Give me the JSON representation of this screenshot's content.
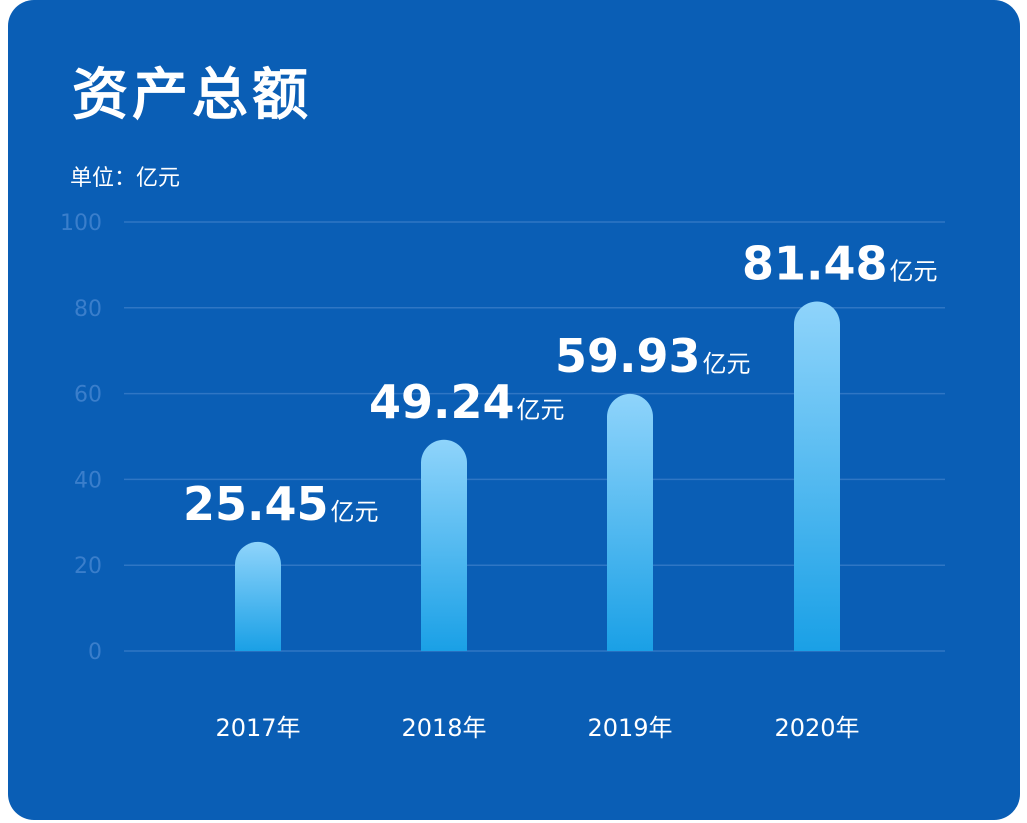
{
  "header": {
    "title": "资产总额",
    "unit_label": "单位：亿元"
  },
  "colors": {
    "background": "#0a5eb5",
    "grid": "#2f76c4",
    "bar_top": "#8fd4fb",
    "bar_bottom": "#1aa0e6",
    "text": "#ffffff",
    "tick": "#3a7ecb"
  },
  "chart_data": {
    "type": "bar",
    "title": "资产总额",
    "ylabel": "单位：亿元",
    "xlabel": "",
    "ylim": [
      0,
      100
    ],
    "yticks": [
      "0",
      "20",
      "40",
      "60",
      "80",
      "100"
    ],
    "categories": [
      "2017年",
      "2018年",
      "2019年",
      "2020年"
    ],
    "values": [
      25.45,
      49.24,
      59.93,
      81.48
    ],
    "data_labels": [
      "25.45",
      "49.24",
      "59.93",
      "81.48"
    ],
    "data_label_unit": "亿元",
    "grid": true,
    "legend": "none"
  }
}
